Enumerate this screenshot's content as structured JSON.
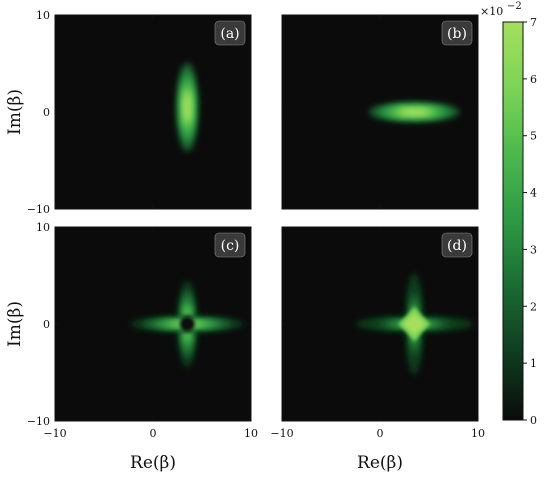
{
  "chart_data": {
    "type": "heatmap",
    "xlabel": "Re(β)",
    "ylabel": "Im(β)",
    "xlim": [
      -10,
      10
    ],
    "ylim": [
      -10,
      10
    ],
    "x_ticks": [
      "−10",
      "0",
      "10"
    ],
    "y_ticks": [
      "10",
      "0",
      "−10"
    ],
    "panels": [
      {
        "label": "(a)",
        "shape": "vertical-ellipse",
        "center": [
          3.5,
          0.5
        ],
        "peak": 0.065
      },
      {
        "label": "(b)",
        "shape": "horizontal-ellipse",
        "center": [
          3.5,
          0.0
        ],
        "peak": 0.065
      },
      {
        "label": "(c)",
        "shape": "cross-with-hole",
        "center": [
          3.5,
          0.0
        ],
        "peak": 0.055
      },
      {
        "label": "(d)",
        "shape": "cross-diamond",
        "center": [
          3.5,
          0.0
        ],
        "peak": 0.07
      }
    ],
    "colorbar": {
      "range": [
        0,
        7
      ],
      "ticks": [
        "0",
        "1",
        "2",
        "3",
        "4",
        "5",
        "6",
        "7"
      ],
      "multiplier": "×10",
      "exponent": "−2",
      "colors": [
        "#0b0b0b",
        "#0f3c1f",
        "#1a6b32",
        "#2c9a42",
        "#4bb84d",
        "#7cd455",
        "#a4e05d"
      ]
    }
  }
}
